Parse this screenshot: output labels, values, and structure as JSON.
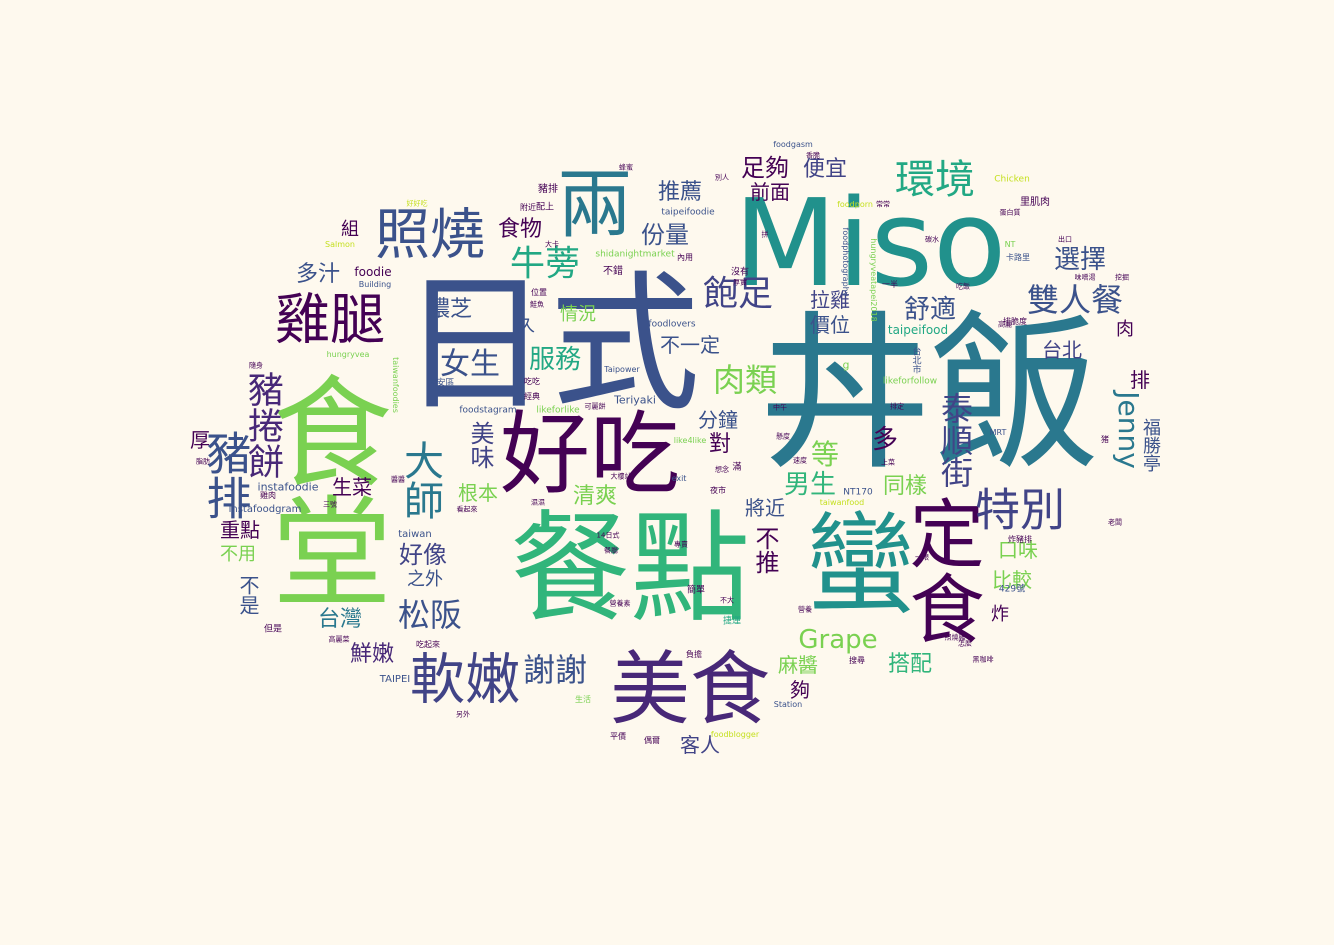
{
  "word_cloud": {
    "background": "#fef9ee",
    "palette": [
      "#440154",
      "#3b528b",
      "#21918c",
      "#31b57b",
      "#7ad151",
      "#c5e021"
    ],
    "words": [
      {
        "text": "丼飯",
        "c": "#2a788e"
      },
      {
        "text": "日式",
        "c": "#3b528b"
      },
      {
        "text": "Miso",
        "c": "#21918c"
      },
      {
        "text": "餐點",
        "c": "#31b57b"
      },
      {
        "text": "食堂",
        "c": "#7ad151"
      },
      {
        "text": "好吃",
        "c": "#440154"
      },
      {
        "text": "蠻",
        "c": "#21918c"
      },
      {
        "text": "定食",
        "c": "#440154"
      },
      {
        "text": "美食",
        "c": "#482878"
      },
      {
        "text": "照燒",
        "c": "#3b528b"
      },
      {
        "text": "雞腿",
        "c": "#440154"
      },
      {
        "text": "兩",
        "c": "#2a788e"
      },
      {
        "text": "軟嫩",
        "c": "#414487"
      },
      {
        "text": "環境",
        "c": "#22a884"
      },
      {
        "text": "特別",
        "c": "#414487"
      },
      {
        "text": "豬排",
        "c": "#3b528b"
      },
      {
        "text": "豬捲餅",
        "c": "#482878"
      },
      {
        "text": "大師",
        "c": "#2a788e"
      },
      {
        "text": "雙人餐",
        "c": "#3b528b"
      },
      {
        "text": "牛蒡",
        "c": "#22a884"
      },
      {
        "text": "謝謝",
        "c": "#3b528b"
      },
      {
        "text": "Jenny",
        "c": "#2a788e"
      },
      {
        "text": "飽足",
        "c": "#414487"
      },
      {
        "text": "肉類",
        "c": "#7ad151"
      },
      {
        "text": "泰順街",
        "c": "#414487"
      },
      {
        "text": "松阪",
        "c": "#3b528b"
      },
      {
        "text": "選擇",
        "c": "#3b528b"
      },
      {
        "text": "女生",
        "c": "#3b528b"
      },
      {
        "text": "服務",
        "c": "#22a884"
      },
      {
        "text": "Grape",
        "c": "#7ad151"
      },
      {
        "text": "舒適",
        "c": "#3b528b"
      },
      {
        "text": "份量",
        "c": "#3b528b"
      },
      {
        "text": "食物",
        "c": "#440154"
      },
      {
        "text": "足夠",
        "c": "#440154"
      },
      {
        "text": "推薦",
        "c": "#3b528b"
      },
      {
        "text": "便宜",
        "c": "#414487"
      },
      {
        "text": "前面",
        "c": "#440154"
      },
      {
        "text": "多汁",
        "c": "#3b528b"
      },
      {
        "text": "濃芝",
        "c": "#3b528b"
      },
      {
        "text": "好像",
        "c": "#414487"
      },
      {
        "text": "台灣",
        "c": "#2a788e"
      },
      {
        "text": "鮮嫩",
        "c": "#482878"
      },
      {
        "text": "男生",
        "c": "#31b57b"
      },
      {
        "text": "口味",
        "c": "#7ad151"
      },
      {
        "text": "搭配",
        "c": "#31b57b"
      },
      {
        "text": "台北",
        "c": "#414487"
      },
      {
        "text": "拉雞",
        "c": "#414487"
      },
      {
        "text": "價位",
        "c": "#3b528b"
      },
      {
        "text": "不一定",
        "c": "#3b528b"
      },
      {
        "text": "美味",
        "c": "#414487"
      },
      {
        "text": "根本",
        "c": "#7ad151"
      },
      {
        "text": "清爽",
        "c": "#7ad151"
      },
      {
        "text": "等",
        "c": "#7ad151"
      },
      {
        "text": "多",
        "c": "#440154"
      },
      {
        "text": "同樣",
        "c": "#7ad151"
      },
      {
        "text": "將近",
        "c": "#3b528b"
      },
      {
        "text": "不推",
        "c": "#440154"
      },
      {
        "text": "比較",
        "c": "#7ad151"
      },
      {
        "text": "麻醬",
        "c": "#7ad151"
      },
      {
        "text": "夠",
        "c": "#440154"
      },
      {
        "text": "客人",
        "c": "#414487"
      },
      {
        "text": "生菜",
        "c": "#440154"
      },
      {
        "text": "重點",
        "c": "#440154"
      },
      {
        "text": "不用",
        "c": "#7ad151"
      },
      {
        "text": "之外",
        "c": "#3b528b"
      },
      {
        "text": "分鐘",
        "c": "#3b528b"
      },
      {
        "text": "對",
        "c": "#440154"
      },
      {
        "text": "情況",
        "c": "#7ad151"
      },
      {
        "text": "久",
        "c": "#3b528b"
      },
      {
        "text": "厚",
        "c": "#440154"
      },
      {
        "text": "組",
        "c": "#440154"
      },
      {
        "text": "福勝亭",
        "c": "#3b528b"
      },
      {
        "text": "排",
        "c": "#440154"
      },
      {
        "text": "肉",
        "c": "#440154"
      },
      {
        "text": "炸",
        "c": "#440154"
      },
      {
        "text": "不是",
        "c": "#3b528b"
      },
      {
        "text": "taipeifood",
        "c": "#22a884"
      },
      {
        "text": "里肌肉",
        "c": "#440154"
      },
      {
        "text": "foodie",
        "c": "#440154"
      },
      {
        "text": "instafoodie",
        "c": "#3b528b"
      },
      {
        "text": "instafoodgram",
        "c": "#3b528b"
      },
      {
        "text": "taiwan",
        "c": "#3b528b"
      },
      {
        "text": "TAIPEI",
        "c": "#3b528b"
      },
      {
        "text": "Teriyaki",
        "c": "#3b528b"
      },
      {
        "text": "NT170",
        "c": "#3b528b"
      },
      {
        "text": "429號",
        "c": "#3b528b"
      },
      {
        "text": "foodgasm",
        "c": "#3b528b"
      },
      {
        "text": "taipeifoodie",
        "c": "#3b528b"
      },
      {
        "text": "foodlovers",
        "c": "#3b528b"
      },
      {
        "text": "foodstagram",
        "c": "#3b528b"
      },
      {
        "text": "likeforlike",
        "c": "#7ad151"
      },
      {
        "text": "likeforfollow",
        "c": "#7ad151"
      },
      {
        "text": "like4like",
        "c": "#7ad151"
      },
      {
        "text": "shidanightmarket",
        "c": "#7ad151"
      },
      {
        "text": "foodporn",
        "c": "#c5e021"
      },
      {
        "text": "foodblogger",
        "c": "#c5e021"
      },
      {
        "text": "taiwanfood",
        "c": "#c5e021"
      },
      {
        "text": "Chicken",
        "c": "#c5e021"
      },
      {
        "text": "Salmon",
        "c": "#c5e021"
      },
      {
        "text": "Building",
        "c": "#3b528b"
      },
      {
        "text": "Station",
        "c": "#3b528b"
      },
      {
        "text": "Taipower",
        "c": "#3b528b"
      },
      {
        "text": "MRT",
        "c": "#3b528b"
      },
      {
        "text": "NT",
        "c": "#7ad151"
      },
      {
        "text": "hungryvea",
        "c": "#7ad151"
      },
      {
        "text": "foodphotography",
        "c": "#3b528b"
      },
      {
        "text": "hungryveatapei2018",
        "c": "#7ad151"
      },
      {
        "text": "taiwanfoodies",
        "c": "#7ad151"
      },
      {
        "text": "大安區",
        "c": "#3b528b"
      },
      {
        "text": "台北市",
        "c": "#3b528b"
      },
      {
        "text": "卡路里",
        "c": "#3b528b"
      },
      {
        "text": "不錯",
        "c": "#440154"
      },
      {
        "text": "沒有",
        "c": "#440154"
      },
      {
        "text": "內用",
        "c": "#440154"
      },
      {
        "text": "位置",
        "c": "#440154"
      },
      {
        "text": "附近",
        "c": "#440154"
      },
      {
        "text": "配上",
        "c": "#440154"
      },
      {
        "text": "豬排",
        "c": "#440154"
      },
      {
        "text": "吃吃",
        "c": "#440154"
      },
      {
        "text": "經典",
        "c": "#440154"
      },
      {
        "text": "可麗餅",
        "c": "#440154"
      },
      {
        "text": "夜市",
        "c": "#440154"
      },
      {
        "text": "想念",
        "c": "#440154"
      },
      {
        "text": "速度",
        "c": "#440154"
      },
      {
        "text": "上菜",
        "c": "#440154"
      },
      {
        "text": "排脆度",
        "c": "#440154"
      },
      {
        "text": "吃起來",
        "c": "#440154"
      },
      {
        "text": "但是",
        "c": "#440154"
      },
      {
        "text": "簡單",
        "c": "#440154"
      },
      {
        "text": "捷運",
        "c": "#22a884"
      },
      {
        "text": "負擔",
        "c": "#440154"
      },
      {
        "text": "搜尋",
        "c": "#440154"
      },
      {
        "text": "照燒雞",
        "c": "#440154"
      },
      {
        "text": "炸豬排",
        "c": "#440154"
      },
      {
        "text": "平價",
        "c": "#440154"
      },
      {
        "text": "偶爾",
        "c": "#440154"
      },
      {
        "text": "生活",
        "c": "#7ad151"
      },
      {
        "text": "另外",
        "c": "#440154"
      },
      {
        "text": "一半",
        "c": "#440154"
      },
      {
        "text": "滿",
        "c": "#440154"
      },
      {
        "text": "雞肉",
        "c": "#440154"
      },
      {
        "text": "三號",
        "c": "#440154"
      },
      {
        "text": "隨身",
        "c": "#440154"
      },
      {
        "text": "高麗菜",
        "c": "#440154"
      },
      {
        "text": "不大",
        "c": "#440154"
      },
      {
        "text": "鮭魚",
        "c": "#440154"
      },
      {
        "text": "大樓站",
        "c": "#440154"
      },
      {
        "text": "中午",
        "c": "#440154"
      },
      {
        "text": "14日式",
        "c": "#440154"
      },
      {
        "text": "蛋白質",
        "c": "#440154"
      },
      {
        "text": "味噌湯",
        "c": "#440154"
      },
      {
        "text": "好好吃",
        "c": "#c5e021"
      },
      {
        "text": "一眼",
        "c": "#440154"
      },
      {
        "text": "餐廳",
        "c": "#440154"
      },
      {
        "text": "營養素",
        "c": "#440154"
      },
      {
        "text": "厚實",
        "c": "#440154"
      },
      {
        "text": "別人",
        "c": "#440154"
      },
      {
        "text": "常常",
        "c": "#440154"
      },
      {
        "text": "碳水",
        "c": "#440154"
      },
      {
        "text": "出口",
        "c": "#440154"
      },
      {
        "text": "高麗",
        "c": "#440154"
      },
      {
        "text": "懸度",
        "c": "#440154"
      },
      {
        "text": "香脆",
        "c": "#440154"
      },
      {
        "text": "exit",
        "c": "#3b528b"
      },
      {
        "text": "老闆",
        "c": "#440154"
      },
      {
        "text": "濕濕",
        "c": "#440154"
      },
      {
        "text": "看起來",
        "c": "#440154"
      },
      {
        "text": "專賣",
        "c": "#440154"
      },
      {
        "text": "g",
        "c": "#7ad151"
      },
      {
        "text": "猪",
        "c": "#440154"
      },
      {
        "text": "怎麼",
        "c": "#440154"
      },
      {
        "text": "黑咖啡",
        "c": "#440154"
      },
      {
        "text": "脂肪",
        "c": "#440154"
      },
      {
        "text": "排定",
        "c": "#440154"
      },
      {
        "text": "挖掘",
        "c": "#440154"
      },
      {
        "text": "吃飯",
        "c": "#440154"
      },
      {
        "text": "營養",
        "c": "#440154"
      },
      {
        "text": "醬醬",
        "c": "#440154"
      },
      {
        "text": "蜂蜜",
        "c": "#440154"
      },
      {
        "text": "大卡",
        "c": "#440154"
      },
      {
        "text": "拼",
        "c": "#440154"
      }
    ]
  }
}
